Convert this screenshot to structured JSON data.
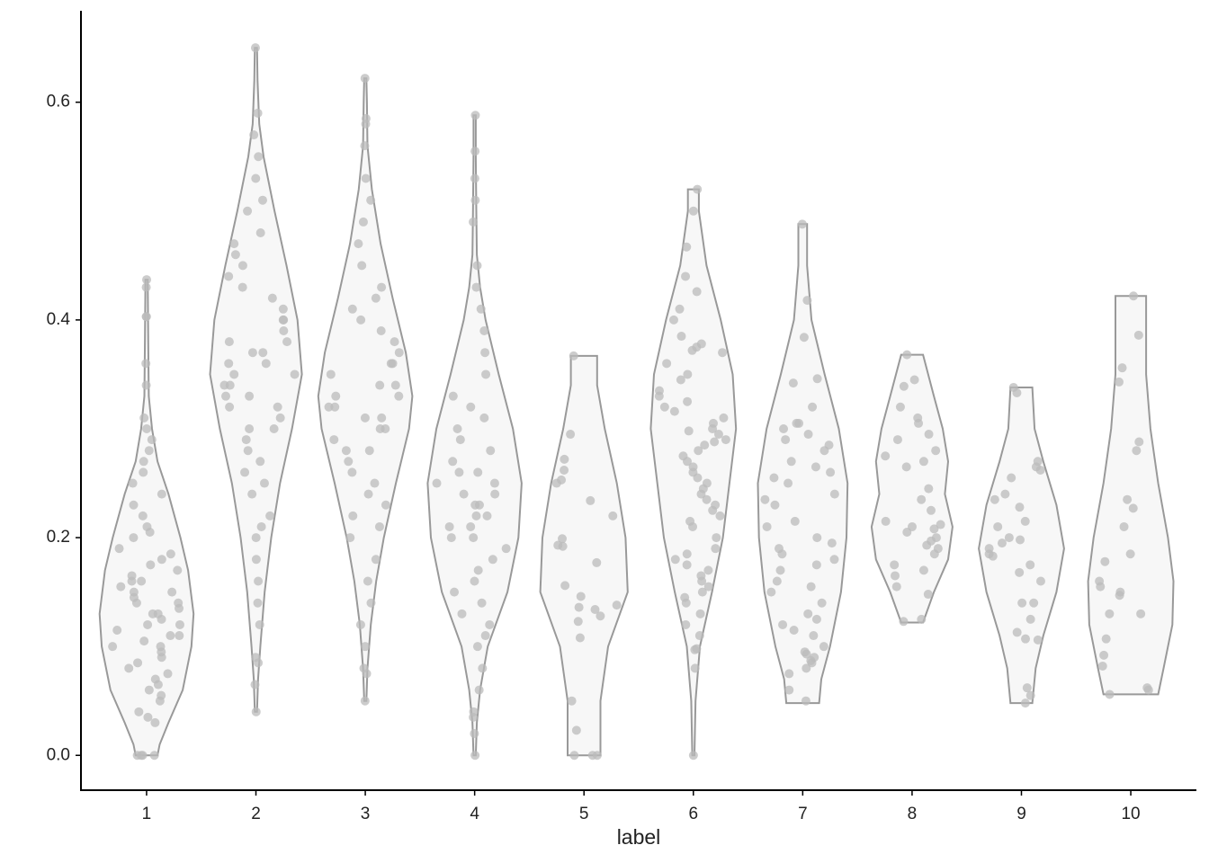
{
  "chart_data": {
    "type": "violin",
    "x_label": "label",
    "categories": [
      "1",
      "2",
      "3",
      "4",
      "5",
      "6",
      "7",
      "8",
      "9",
      "10"
    ],
    "ylim": [
      -0.032,
      0.684
    ],
    "yticks": [
      {
        "value": 0,
        "label": "0.0"
      },
      0.2,
      0.4,
      0.6
    ],
    "violin_fill": "#f7f7f7",
    "violin_stroke": "#999999",
    "point_color": "#bbbbbb",
    "groups": [
      {
        "y": [
          0,
          0.01,
          0.03,
          0.06,
          0.1,
          0.13,
          0.17,
          0.2,
          0.24,
          0.27,
          0.3,
          0.33,
          0.38,
          0.437
        ],
        "width": [
          0.1,
          0.12,
          0.2,
          0.33,
          0.41,
          0.43,
          0.38,
          0.31,
          0.2,
          0.1,
          0.05,
          0.02,
          0.015,
          0.01
        ],
        "points": [
          0,
          0,
          0,
          0,
          0.03,
          0.035,
          0.04,
          0.05,
          0.055,
          0.06,
          0.065,
          0.07,
          0.075,
          0.08,
          0.085,
          0.09,
          0.095,
          0.1,
          0.1,
          0.105,
          0.11,
          0.11,
          0.115,
          0.12,
          0.12,
          0.125,
          0.13,
          0.13,
          0.135,
          0.14,
          0.14,
          0.145,
          0.15,
          0.15,
          0.155,
          0.16,
          0.16,
          0.165,
          0.17,
          0.175,
          0.18,
          0.185,
          0.19,
          0.2,
          0.205,
          0.21,
          0.22,
          0.23,
          0.24,
          0.25,
          0.26,
          0.27,
          0.28,
          0.29,
          0.3,
          0.31,
          0.34,
          0.36,
          0.403,
          0.403,
          0.43,
          0.437
        ]
      },
      {
        "y": [
          0.04,
          0.07,
          0.1,
          0.15,
          0.2,
          0.25,
          0.3,
          0.35,
          0.4,
          0.45,
          0.5,
          0.55,
          0.58,
          0.62,
          0.65
        ],
        "width": [
          0.01,
          0.02,
          0.04,
          0.08,
          0.14,
          0.22,
          0.33,
          0.42,
          0.38,
          0.28,
          0.17,
          0.07,
          0.03,
          0.015,
          0.01
        ],
        "points": [
          0.04,
          0.065,
          0.085,
          0.09,
          0.12,
          0.14,
          0.16,
          0.18,
          0.2,
          0.21,
          0.22,
          0.24,
          0.25,
          0.26,
          0.27,
          0.28,
          0.29,
          0.3,
          0.3,
          0.31,
          0.32,
          0.32,
          0.33,
          0.33,
          0.34,
          0.34,
          0.35,
          0.35,
          0.36,
          0.36,
          0.37,
          0.37,
          0.38,
          0.38,
          0.39,
          0.4,
          0.4,
          0.41,
          0.42,
          0.43,
          0.44,
          0.45,
          0.46,
          0.47,
          0.48,
          0.5,
          0.51,
          0.53,
          0.55,
          0.57,
          0.59,
          0.65
        ]
      },
      {
        "y": [
          0.05,
          0.08,
          0.12,
          0.16,
          0.2,
          0.25,
          0.3,
          0.33,
          0.37,
          0.42,
          0.47,
          0.52,
          0.56,
          0.6,
          0.622
        ],
        "width": [
          0.01,
          0.02,
          0.05,
          0.1,
          0.17,
          0.28,
          0.4,
          0.43,
          0.37,
          0.25,
          0.14,
          0.06,
          0.02,
          0.015,
          0.01
        ],
        "points": [
          0.05,
          0.075,
          0.08,
          0.1,
          0.12,
          0.14,
          0.16,
          0.18,
          0.2,
          0.21,
          0.22,
          0.23,
          0.24,
          0.25,
          0.26,
          0.27,
          0.28,
          0.28,
          0.29,
          0.3,
          0.3,
          0.31,
          0.31,
          0.32,
          0.32,
          0.33,
          0.33,
          0.34,
          0.34,
          0.35,
          0.36,
          0.36,
          0.37,
          0.38,
          0.39,
          0.4,
          0.41,
          0.42,
          0.43,
          0.45,
          0.47,
          0.49,
          0.51,
          0.53,
          0.56,
          0.58,
          0.585,
          0.622
        ]
      },
      {
        "y": [
          0,
          0.03,
          0.06,
          0.1,
          0.15,
          0.2,
          0.25,
          0.3,
          0.35,
          0.4,
          0.43,
          0.46,
          0.5,
          0.55,
          0.588
        ],
        "width": [
          0.01,
          0.02,
          0.05,
          0.12,
          0.3,
          0.4,
          0.43,
          0.35,
          0.22,
          0.1,
          0.05,
          0.02,
          0.015,
          0.01,
          0.01
        ],
        "points": [
          0,
          0.02,
          0.035,
          0.04,
          0.06,
          0.08,
          0.1,
          0.11,
          0.12,
          0.13,
          0.14,
          0.15,
          0.16,
          0.17,
          0.18,
          0.19,
          0.2,
          0.2,
          0.21,
          0.21,
          0.22,
          0.22,
          0.23,
          0.23,
          0.24,
          0.24,
          0.25,
          0.25,
          0.26,
          0.26,
          0.27,
          0.28,
          0.29,
          0.3,
          0.31,
          0.32,
          0.33,
          0.35,
          0.37,
          0.39,
          0.41,
          0.43,
          0.45,
          0.49,
          0.51,
          0.53,
          0.555,
          0.588
        ]
      },
      {
        "y": [
          0,
          0.05,
          0.1,
          0.15,
          0.2,
          0.25,
          0.3,
          0.34,
          0.367
        ],
        "width": [
          0.15,
          0.15,
          0.22,
          0.4,
          0.38,
          0.3,
          0.19,
          0.12,
          0.12
        ],
        "points": [
          0.367,
          0.295,
          0.272,
          0.262,
          0.253,
          0.25,
          0.234,
          0.22,
          0.199,
          0.193,
          0.192,
          0.177,
          0.156,
          0.146,
          0.138,
          0.136,
          0.134,
          0.128,
          0.123,
          0.108,
          0.05,
          0.023,
          0,
          0,
          0
        ]
      },
      {
        "y": [
          0,
          0.05,
          0.1,
          0.15,
          0.2,
          0.25,
          0.3,
          0.35,
          0.4,
          0.45,
          0.5,
          0.52
        ],
        "width": [
          0.01,
          0.02,
          0.06,
          0.17,
          0.27,
          0.33,
          0.39,
          0.36,
          0.25,
          0.12,
          0.05,
          0.05
        ],
        "points": [
          0.52,
          0.5,
          0.467,
          0.44,
          0.426,
          0.41,
          0.4,
          0.385,
          0.378,
          0.375,
          0.372,
          0.37,
          0.36,
          0.35,
          0.345,
          0.335,
          0.33,
          0.325,
          0.32,
          0.316,
          0.31,
          0.305,
          0.3,
          0.298,
          0.295,
          0.29,
          0.288,
          0.285,
          0.28,
          0.275,
          0.27,
          0.265,
          0.26,
          0.255,
          0.25,
          0.245,
          0.24,
          0.235,
          0.23,
          0.225,
          0.22,
          0.215,
          0.21,
          0.2,
          0.19,
          0.185,
          0.18,
          0.175,
          0.17,
          0.165,
          0.16,
          0.155,
          0.15,
          0.145,
          0.14,
          0.13,
          0.12,
          0.11,
          0.098,
          0.097,
          0.08,
          0
        ]
      },
      {
        "y": [
          0.048,
          0.07,
          0.1,
          0.15,
          0.2,
          0.25,
          0.3,
          0.35,
          0.4,
          0.45,
          0.488
        ],
        "width": [
          0.15,
          0.17,
          0.25,
          0.35,
          0.4,
          0.41,
          0.33,
          0.2,
          0.08,
          0.04,
          0.04
        ],
        "points": [
          0.488,
          0.418,
          0.384,
          0.346,
          0.342,
          0.32,
          0.305,
          0.305,
          0.3,
          0.295,
          0.29,
          0.285,
          0.28,
          0.27,
          0.265,
          0.26,
          0.255,
          0.25,
          0.24,
          0.235,
          0.23,
          0.215,
          0.21,
          0.2,
          0.195,
          0.19,
          0.185,
          0.18,
          0.175,
          0.17,
          0.16,
          0.155,
          0.15,
          0.14,
          0.13,
          0.125,
          0.12,
          0.115,
          0.11,
          0.1,
          0.095,
          0.093,
          0.09,
          0.087,
          0.085,
          0.08,
          0.075,
          0.06,
          0.05
        ]
      },
      {
        "y": [
          0.122,
          0.15,
          0.18,
          0.21,
          0.24,
          0.27,
          0.3,
          0.33,
          0.368
        ],
        "width": [
          0.1,
          0.2,
          0.33,
          0.37,
          0.3,
          0.33,
          0.28,
          0.2,
          0.1
        ],
        "points": [
          0.368,
          0.345,
          0.339,
          0.32,
          0.31,
          0.305,
          0.295,
          0.29,
          0.28,
          0.275,
          0.27,
          0.265,
          0.245,
          0.235,
          0.225,
          0.215,
          0.212,
          0.21,
          0.208,
          0.205,
          0.2,
          0.197,
          0.193,
          0.19,
          0.185,
          0.175,
          0.17,
          0.165,
          0.155,
          0.148,
          0.125,
          0.123
        ]
      },
      {
        "y": [
          0.048,
          0.08,
          0.11,
          0.15,
          0.19,
          0.23,
          0.27,
          0.3,
          0.338
        ],
        "width": [
          0.1,
          0.13,
          0.2,
          0.32,
          0.39,
          0.32,
          0.2,
          0.12,
          0.1
        ],
        "points": [
          0.338,
          0.333,
          0.27,
          0.265,
          0.262,
          0.255,
          0.24,
          0.235,
          0.228,
          0.215,
          0.21,
          0.2,
          0.198,
          0.195,
          0.19,
          0.185,
          0.183,
          0.175,
          0.168,
          0.16,
          0.14,
          0.14,
          0.125,
          0.113,
          0.107,
          0.106,
          0.062,
          0.055,
          0.048
        ]
      },
      {
        "y": [
          0.056,
          0.08,
          0.12,
          0.16,
          0.2,
          0.25,
          0.3,
          0.35,
          0.4,
          0.422
        ],
        "width": [
          0.25,
          0.3,
          0.38,
          0.39,
          0.34,
          0.25,
          0.18,
          0.14,
          0.14,
          0.14
        ],
        "points": [
          0.422,
          0.386,
          0.356,
          0.343,
          0.288,
          0.28,
          0.235,
          0.227,
          0.21,
          0.185,
          0.178,
          0.16,
          0.155,
          0.15,
          0.147,
          0.13,
          0.13,
          0.107,
          0.092,
          0.082,
          0.062,
          0.06,
          0.056
        ]
      }
    ]
  }
}
